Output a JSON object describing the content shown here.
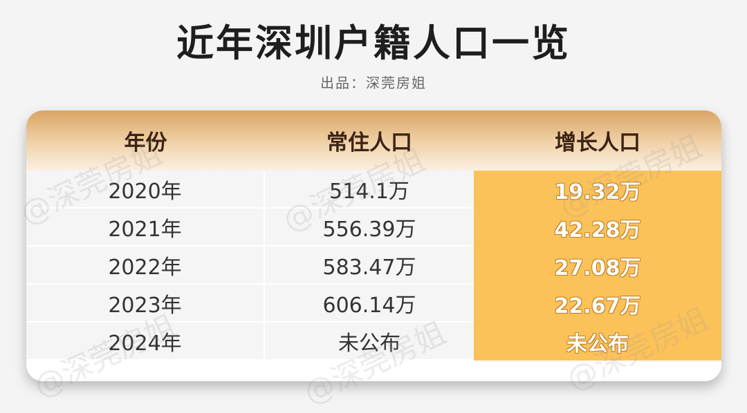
{
  "title": "近年深圳户籍人口一览",
  "subtitle": "出品：深莞房姐",
  "watermark": "@深莞房姐",
  "colors": {
    "highlight_column": "#fcc25a",
    "header_gradient_top": "#d9a463"
  },
  "table": {
    "headers": [
      "年份",
      "常住人口",
      "增长人口"
    ],
    "rows": [
      {
        "year": "2020年",
        "resident": "514.1万",
        "growth": "19.32万"
      },
      {
        "year": "2021年",
        "resident": "556.39万",
        "growth": "42.28万"
      },
      {
        "year": "2022年",
        "resident": "583.47万",
        "growth": "27.08万"
      },
      {
        "year": "2023年",
        "resident": "606.14万",
        "growth": "22.67万"
      },
      {
        "year": "2024年",
        "resident": "未公布",
        "growth": "未公布"
      }
    ]
  }
}
